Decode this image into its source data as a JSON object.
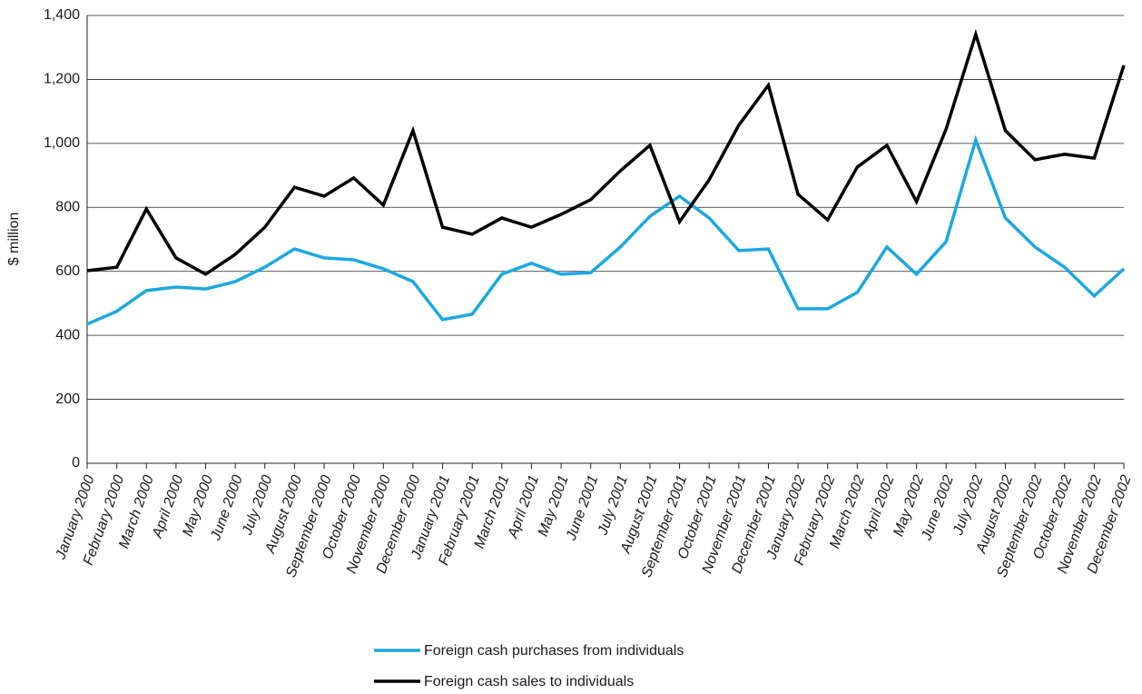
{
  "chart_data": {
    "type": "line",
    "ylabel": "$ million",
    "categories": [
      "January 2000",
      "February 2000",
      "March 2000",
      "April 2000",
      "May 2000",
      "June 2000",
      "July 2000",
      "August 2000",
      "September 2000",
      "October 2000",
      "November 2000",
      "December 2000",
      "January 2001",
      "February 2001",
      "March 2001",
      "April 2001",
      "May 2001",
      "June 2001",
      "July 2001",
      "August 2001",
      "September 2001",
      "October 2001",
      "November 2001",
      "December 2001",
      "January 2002",
      "February 2002",
      "March 2002",
      "April 2002",
      "May 2002",
      "June 2002",
      "July 2002",
      "August 2002",
      "September 2002",
      "October 2002",
      "November 2002",
      "December 2002"
    ],
    "series": [
      {
        "name": "Foreign cash purchases from individuals",
        "color": "#1ba8e0",
        "values": [
          435,
          475,
          540,
          551,
          545,
          568,
          613,
          670,
          642,
          636,
          608,
          568,
          449,
          466,
          591,
          625,
          591,
          596,
          676,
          772,
          835,
          767,
          665,
          670,
          483,
          483,
          534,
          676,
          591,
          693,
          1011,
          767,
          676,
          613,
          523,
          608
        ]
      },
      {
        "name": "Foreign cash sales to individuals",
        "color": "#000000",
        "values": [
          602,
          613,
          795,
          642,
          591,
          653,
          738,
          863,
          835,
          892,
          807,
          1040,
          738,
          716,
          767,
          738,
          778,
          824,
          914,
          994,
          755,
          886,
          1057,
          1182,
          841,
          761,
          926,
          994,
          818,
          1045,
          1341,
          1040,
          949,
          966,
          954,
          1244
        ]
      }
    ],
    "ylim": [
      0,
      1400
    ],
    "yticks": [
      0,
      200,
      400,
      600,
      800,
      {
        "value": 1000,
        "label": "1,000"
      },
      {
        "value": 1200,
        "label": "1,200"
      },
      {
        "value": 1400,
        "label": "1,400"
      }
    ],
    "grid": true,
    "legend": "bottom"
  }
}
